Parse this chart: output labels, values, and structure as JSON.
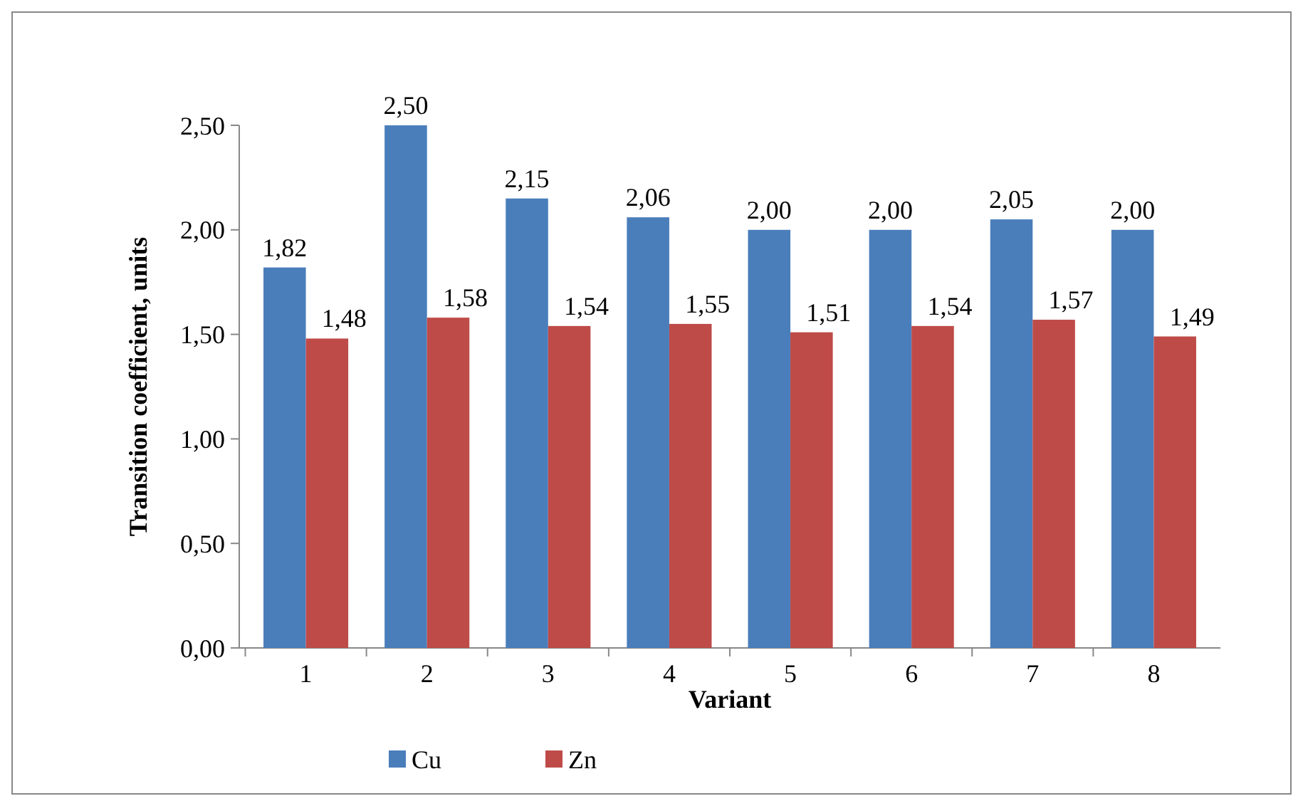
{
  "chart_data": {
    "type": "bar",
    "xlabel": "Variant",
    "ylabel": "Transition coefficient, units",
    "categories": [
      "1",
      "2",
      "3",
      "4",
      "5",
      "6",
      "7",
      "8"
    ],
    "series": [
      {
        "name": "Cu",
        "color": "#4a7ebb",
        "values": [
          1.82,
          2.5,
          2.15,
          2.06,
          2.0,
          2.0,
          2.05,
          2.0
        ],
        "value_labels": [
          "1,82",
          "2,50",
          "2,15",
          "2,06",
          "2,00",
          "2,00",
          "2,05",
          "2,00"
        ]
      },
      {
        "name": "Zn",
        "color": "#be4b48",
        "values": [
          1.48,
          1.58,
          1.54,
          1.55,
          1.51,
          1.54,
          1.57,
          1.49
        ],
        "value_labels": [
          "1,48",
          "1,58",
          "1,54",
          "1,55",
          "1,51",
          "1,54",
          "1,57",
          "1,49"
        ]
      }
    ],
    "ylim": [
      0,
      2.5
    ],
    "yticks": [
      {
        "value": 0,
        "label": "0,00"
      },
      {
        "value": 0.5,
        "label": "0,50"
      },
      {
        "value": 1,
        "label": "1,00"
      },
      {
        "value": 1.5,
        "label": "1,50"
      },
      {
        "value": 2,
        "label": "2,00"
      },
      {
        "value": 2.5,
        "label": "2,50"
      }
    ],
    "grid": false,
    "legend": "bottom"
  }
}
